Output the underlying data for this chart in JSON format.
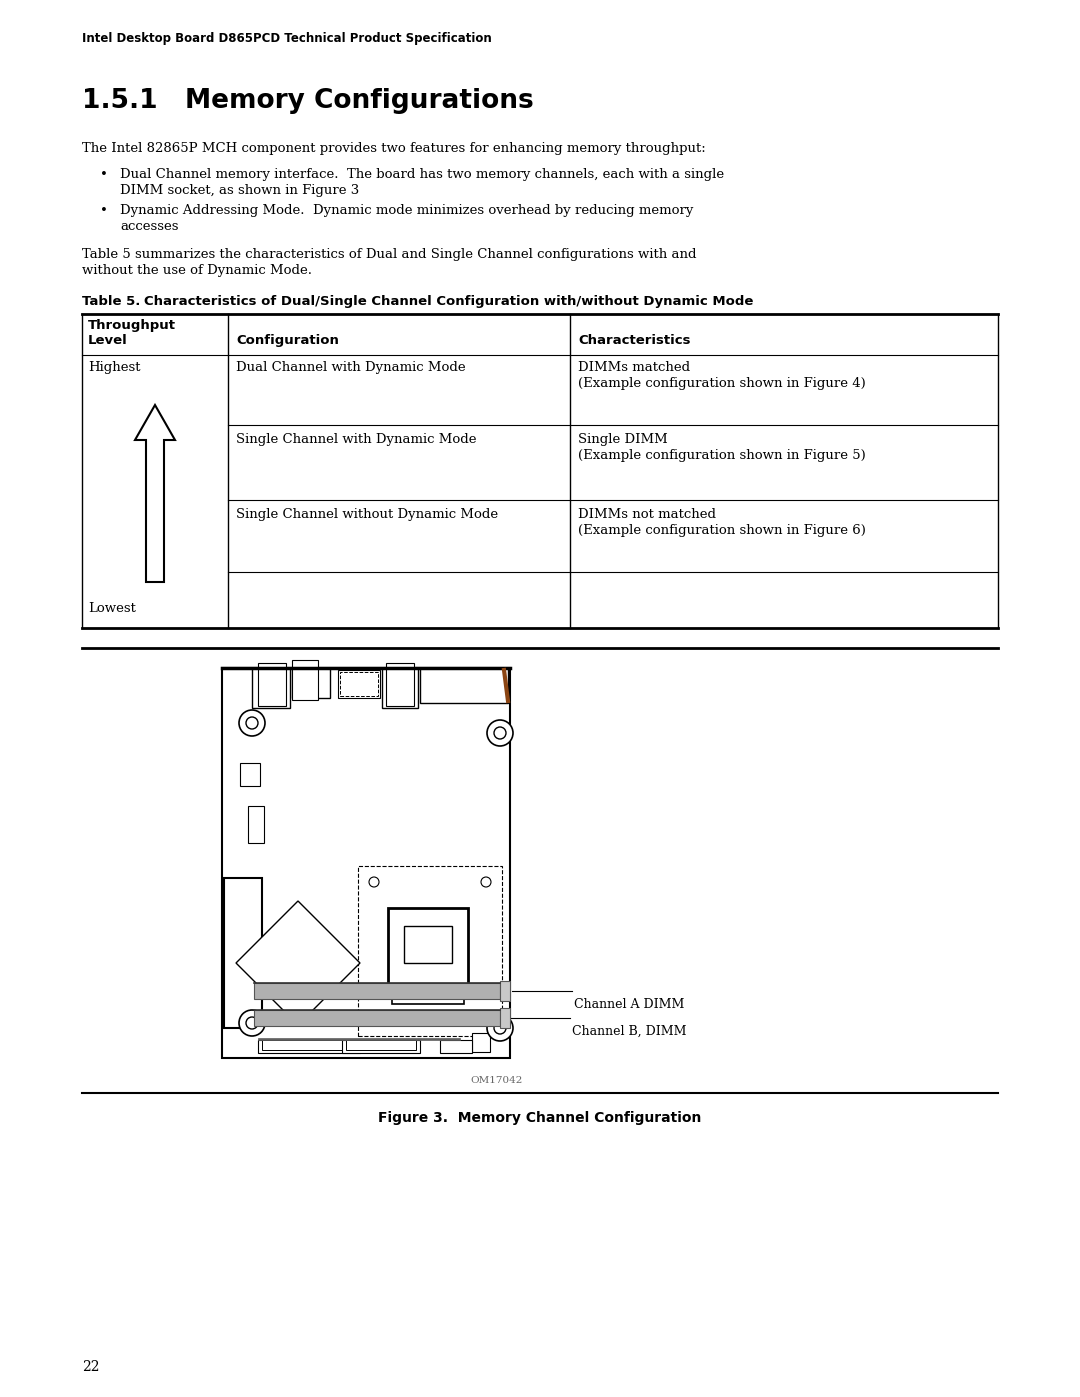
{
  "header_text": "Intel Desktop Board D865PCD Technical Product Specification",
  "section_title": "1.5.1   Memory Configurations",
  "body_text1": "The Intel 82865P MCH component provides two features for enhancing memory throughput:",
  "bullet1_main": "Dual Channel memory interface.  The board has two memory channels, each with a single",
  "bullet1_cont": "DIMM socket, as shown in Figure 3",
  "bullet2_main": "Dynamic Addressing Mode.  Dynamic mode minimizes overhead by reducing memory",
  "bullet2_cont": "accesses",
  "table_intro1": "Table 5 summarizes the characteristics of Dual and Single Channel configurations with and",
  "table_intro2": "without the use of Dynamic Mode.",
  "table_label": "Table 5.",
  "table_title": "Characteristics of Dual/Single Channel Configuration with/without Dynamic Mode",
  "col1_hdr1": "Throughput",
  "col1_hdr2": "Level",
  "col2_hdr": "Configuration",
  "col3_hdr": "Characteristics",
  "row1_col1": "Highest",
  "row1_col2": "Dual Channel with Dynamic Mode",
  "row1_col3a": "DIMMs matched",
  "row1_col3b": "(Example configuration shown in Figure 4)",
  "row2_col2": "Single Channel with Dynamic Mode",
  "row2_col3a": "Single DIMM",
  "row2_col3b": "(Example configuration shown in Figure 5)",
  "row3_col2": "Single Channel without Dynamic Mode",
  "row3_col3a": "DIMMs not matched",
  "row3_col3b": "(Example configuration shown in Figure 6)",
  "row_lowest": "Lowest",
  "fig_label": "Figure 3.  Memory Channel Configuration",
  "channel_a_label": "Channel A DIMM",
  "channel_b_label": "Channel B, DIMM",
  "om_label": "OM17042",
  "page_number": "22",
  "bg_color": "#ffffff",
  "text_color": "#000000"
}
